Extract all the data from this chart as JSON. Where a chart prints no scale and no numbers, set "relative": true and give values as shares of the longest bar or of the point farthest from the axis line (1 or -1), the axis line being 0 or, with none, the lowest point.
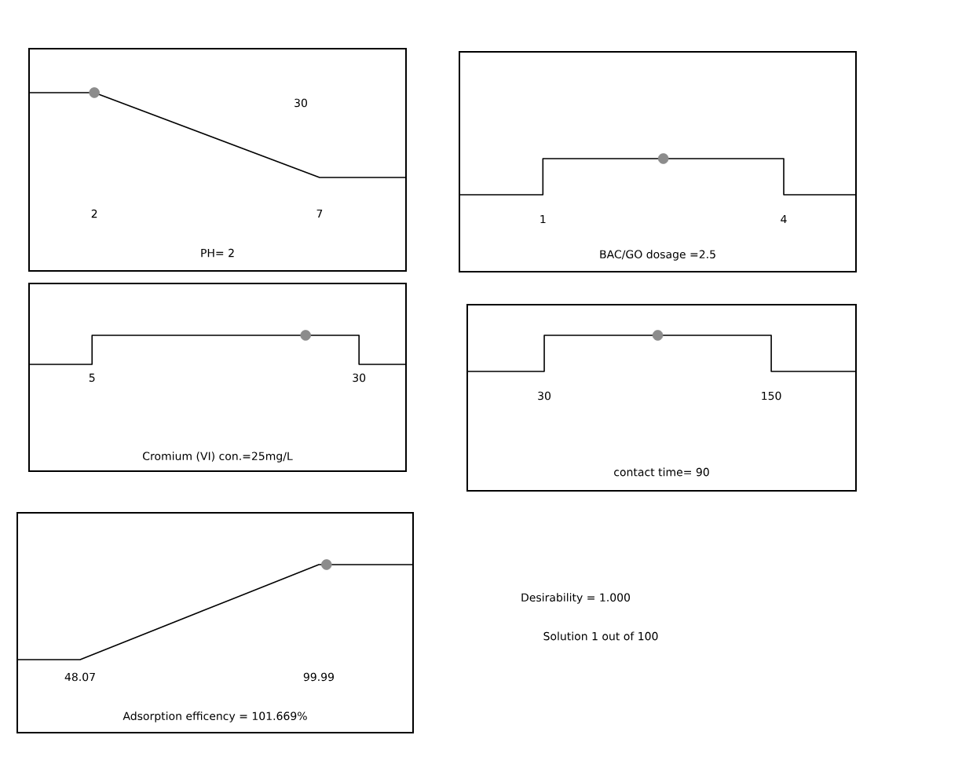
{
  "chart_data": [
    {
      "type": "line",
      "relative": true,
      "xlabel": "PH= 2",
      "xlim": [
        0.55,
        8.92
      ],
      "xticks": [
        2,
        7
      ],
      "annotations": [
        "30"
      ],
      "series": [
        {
          "color": "#000000",
          "x": [
            0.55,
            2,
            7,
            8.92
          ],
          "values": [
            1,
            1,
            0,
            0
          ]
        },
        {
          "type": "scatter",
          "color": "#8c8c8c",
          "x": [
            2
          ],
          "values": [
            1
          ]
        }
      ]
    },
    {
      "type": "line",
      "relative": true,
      "xlabel": "BAC/GO dosage =2.5",
      "xlim": [
        -0.04,
        4.9
      ],
      "xticks": [
        1,
        4
      ],
      "series": [
        {
          "color": "#000000",
          "x": [
            -0.04,
            1,
            1,
            4,
            4,
            4.9
          ],
          "values": [
            0,
            0,
            1,
            1,
            0,
            0
          ]
        },
        {
          "type": "scatter",
          "color": "#8c8c8c",
          "x": [
            2.5
          ],
          "values": [
            1
          ]
        }
      ]
    },
    {
      "type": "line",
      "relative": true,
      "xlabel": "Cromium (VI) con.=25mg/L",
      "xlim": [
        -0.9,
        34.4
      ],
      "xticks": [
        5,
        30
      ],
      "series": [
        {
          "color": "#000000",
          "x": [
            -0.9,
            5,
            5,
            30,
            30,
            34.4
          ],
          "values": [
            0,
            0,
            1,
            1,
            0,
            0
          ]
        },
        {
          "type": "scatter",
          "color": "#8c8c8c",
          "x": [
            25
          ],
          "values": [
            1
          ]
        }
      ]
    },
    {
      "type": "line",
      "relative": true,
      "xlabel": "contact time= 90",
      "xlim": [
        -10.7,
        194.8
      ],
      "xticks": [
        30,
        150
      ],
      "series": [
        {
          "color": "#000000",
          "x": [
            -10.7,
            30,
            30,
            150,
            150,
            194.8
          ],
          "values": [
            0,
            0,
            1,
            1,
            0,
            0
          ]
        },
        {
          "type": "scatter",
          "color": "#8c8c8c",
          "x": [
            90
          ],
          "values": [
            1
          ]
        }
      ]
    },
    {
      "type": "line",
      "relative": true,
      "xlabel": "Adsorption efficency = 101.669%",
      "xlim": [
        34.4,
        120.5
      ],
      "xticks": [
        48.07,
        99.99
      ],
      "series": [
        {
          "color": "#000000",
          "x": [
            34.4,
            48.07,
            99.99,
            120.5
          ],
          "values": [
            0,
            0,
            1,
            1
          ]
        },
        {
          "type": "scatter",
          "color": "#8c8c8c",
          "x": [
            101.669
          ],
          "values": [
            1
          ]
        }
      ]
    },
    {
      "type": "other",
      "annotations": [
        "Desirability = 1.000",
        "Solution 1 out of 100"
      ]
    }
  ]
}
